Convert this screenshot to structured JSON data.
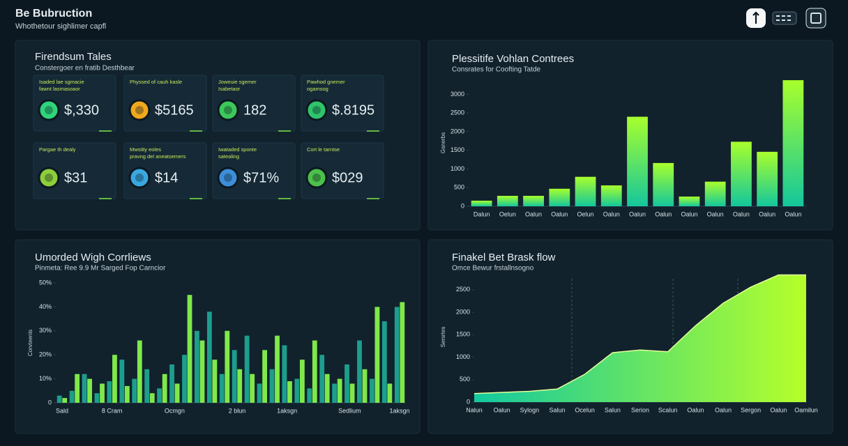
{
  "header": {
    "title": "Be Bubruction",
    "subtitle": "Whothetour sighlimer capfl"
  },
  "kpi_panel": {
    "title": "Firendsum Tales",
    "subtitle": "Constergoer en fratib Desthbear",
    "cards": [
      {
        "label": [
          "Isaded lae sgmacie",
          "fawnt lasmasoaor"
        ],
        "value": "$,330"
      },
      {
        "label": [
          "Physsed of cauh kasle"
        ],
        "value": "$5165"
      },
      {
        "label": [
          "Joweuie sgemer",
          "Isabetaor"
        ],
        "value": "182"
      },
      {
        "label": [
          "Pawhod gnemer",
          "ogamsog"
        ],
        "value": "$.8195"
      },
      {
        "label": [
          "Pargae th dealy"
        ],
        "value": "$31"
      },
      {
        "label": [
          "Mwstity eoles",
          "pravng del aneatsemers"
        ],
        "value": "$14"
      },
      {
        "label": [
          "Iwataded sponte",
          "satealing"
        ],
        "value": "$71%"
      },
      {
        "label": [
          "Cort le tarntse"
        ],
        "value": "$029"
      }
    ]
  },
  "chart_data": [
    {
      "type": "bar",
      "title": "Plessitife Vohlan Contrees",
      "subtitle": "Consrates for Coofting Tatde",
      "y_label": "Gsnerbs",
      "categories": [
        "Dalun",
        "Oelun",
        "Oalun",
        "Oalun",
        "Oelun",
        "Oalun",
        "Oalun",
        "Oalun",
        "Oalun",
        "Oalun",
        "Oalun",
        "Oalun",
        "Oalun"
      ],
      "values": [
        150,
        280,
        280,
        470,
        790,
        560,
        2400,
        1160,
        260,
        660,
        1730,
        1460,
        3380
      ],
      "colors": [
        "#14c79c",
        "#a8ff2c"
      ],
      "ylim": [
        0,
        3400
      ],
      "yticks": [
        0,
        500,
        1000,
        1500,
        2000,
        2500,
        3000
      ],
      "grid": false
    },
    {
      "type": "grouped_bar",
      "title": "Umorded Wigh Corrliews",
      "subtitle": "Pinmeta: Ree 9.9 Mr Sarged Fop Carncior",
      "y_label": "Corvteenis",
      "categories": [
        "Sald",
        null,
        null,
        null,
        "8 Cram",
        null,
        null,
        null,
        null,
        "Ocmgn",
        null,
        null,
        null,
        null,
        "2 blun",
        null,
        null,
        null,
        "1aksgn",
        null,
        null,
        null,
        null,
        "Sedlium",
        null,
        null,
        null,
        "1aksgn"
      ],
      "series": [
        {
          "name": "Teal",
          "color": "#1d9e8c",
          "values": [
            3,
            5,
            12,
            4,
            9,
            18,
            10,
            14,
            6,
            16,
            20,
            30,
            38,
            12,
            22,
            28,
            8,
            14,
            24,
            10,
            6,
            20,
            8,
            16,
            26,
            10,
            34,
            40
          ]
        },
        {
          "name": "Green",
          "color": "#7fe84a",
          "values": [
            2,
            12,
            10,
            8,
            20,
            7,
            26,
            4,
            12,
            8,
            45,
            26,
            18,
            30,
            14,
            12,
            22,
            28,
            9,
            18,
            26,
            12,
            10,
            8,
            14,
            40,
            8,
            42
          ]
        }
      ],
      "ylim": [
        0,
        50
      ],
      "yticks": [
        0,
        {
          "value": 10,
          "label": "10%"
        },
        {
          "value": 20,
          "label": "20%"
        },
        {
          "value": 30,
          "label": "30%"
        },
        {
          "value": 40,
          "label": "40%"
        },
        {
          "value": 50,
          "label": "50%"
        }
      ],
      "grid": false
    },
    {
      "type": "area",
      "title": "Finakel Bet Brask flow",
      "subtitle": "Omce Bewur frstallnsogno",
      "y_label": "Sersrtes",
      "categories": [
        "Nalun",
        "Oalun",
        "Sylogn",
        "Salun",
        "Ocelun",
        "Salun",
        "Serion",
        "Scalun",
        "Oalun",
        "Oalun",
        "Sergon",
        "Oalun",
        "Oamilun"
      ],
      "values": [
        190,
        215,
        240,
        290,
        620,
        1100,
        1160,
        1120,
        1700,
        2200,
        2560,
        2830,
        2830
      ],
      "colors": [
        "#12c9a0",
        "#b6ff2a"
      ],
      "ylim": [
        0,
        2900
      ],
      "yticks": [
        0,
        500,
        1000,
        1500,
        2000,
        2500
      ],
      "grid": false
    }
  ]
}
